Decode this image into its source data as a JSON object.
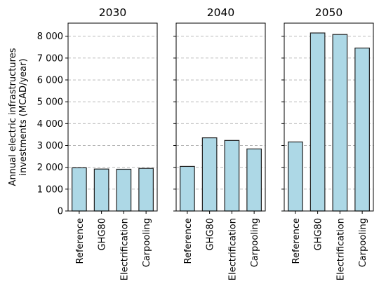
{
  "chart_data": {
    "type": "bar",
    "ylabel_lines": [
      "Annual electric infrastructures",
      "investments (MCAD/year)"
    ],
    "ylim": [
      0,
      8600
    ],
    "yticks": [
      0,
      1000,
      2000,
      3000,
      4000,
      5000,
      6000,
      7000,
      8000
    ],
    "ytick_labels": [
      "0",
      "1 000",
      "2 000",
      "3 000",
      "4 000",
      "5 000",
      "6 000",
      "7 000",
      "8 000"
    ],
    "grid": "horizontal dashed",
    "bar_color": "#add8e6",
    "bar_edge_color": "#222222",
    "categories": [
      "Reference",
      "GHG80",
      "Electrification",
      "Carpooling"
    ],
    "panels": [
      {
        "title": "2030",
        "values": [
          1980,
          1920,
          1910,
          1950
        ]
      },
      {
        "title": "2040",
        "values": [
          2040,
          3350,
          3230,
          2840
        ]
      },
      {
        "title": "2050",
        "values": [
          3160,
          8150,
          8080,
          7460
        ]
      }
    ]
  }
}
